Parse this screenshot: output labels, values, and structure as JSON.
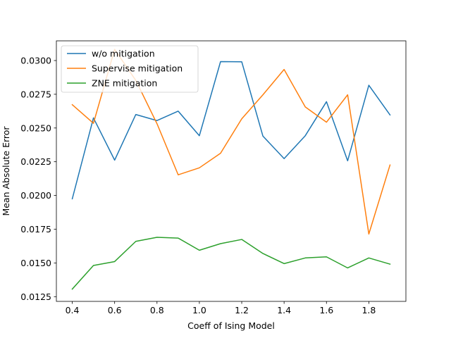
{
  "chart_data": {
    "type": "line",
    "title": "",
    "xlabel": "Coeff of Ising Model",
    "ylabel": "Mean Absolute Error",
    "x": [
      0.4,
      0.5,
      0.6,
      0.7,
      0.8,
      0.9,
      1.0,
      1.1,
      1.2,
      1.3,
      1.4,
      1.5,
      1.6,
      1.7,
      1.8,
      1.9
    ],
    "xlim": [
      0.325,
      1.975
    ],
    "ylim": [
      0.01215,
      0.03146
    ],
    "xticks": [
      0.4,
      0.6,
      0.8,
      1.0,
      1.2,
      1.4,
      1.6,
      1.8
    ],
    "xtick_labels": [
      "0.4",
      "0.6",
      "0.8",
      "1.0",
      "1.2",
      "1.4",
      "1.6",
      "1.8"
    ],
    "yticks": [
      0.0125,
      0.015,
      0.0175,
      0.02,
      0.0225,
      0.025,
      0.0275,
      0.03
    ],
    "ytick_labels": [
      "0.0125",
      "0.0150",
      "0.0175",
      "0.0200",
      "0.0225",
      "0.0250",
      "0.0275",
      "0.0300"
    ],
    "grid": false,
    "legend_position": "upper-left",
    "series": [
      {
        "name": "w/o mitigation",
        "color": "#1f77b4",
        "values": [
          0.01975,
          0.02575,
          0.02262,
          0.026,
          0.02555,
          0.02625,
          0.02443,
          0.02992,
          0.02991,
          0.0244,
          0.02273,
          0.02443,
          0.02695,
          0.02257,
          0.02817,
          0.02597
        ]
      },
      {
        "name": "Supervise mitigation",
        "color": "#ff7f0e",
        "values": [
          0.02673,
          0.02535,
          0.03083,
          0.02853,
          0.02532,
          0.02153,
          0.02205,
          0.02313,
          0.02568,
          0.02746,
          0.02934,
          0.02656,
          0.02543,
          0.02746,
          0.01714,
          0.02226
        ]
      },
      {
        "name": "ZNE mitigation",
        "color": "#2ca02c",
        "values": [
          0.01306,
          0.01481,
          0.0151,
          0.0166,
          0.0169,
          0.01684,
          0.01594,
          0.01643,
          0.01674,
          0.0157,
          0.01495,
          0.01537,
          0.01545,
          0.01463,
          0.01537,
          0.01491
        ]
      }
    ]
  }
}
